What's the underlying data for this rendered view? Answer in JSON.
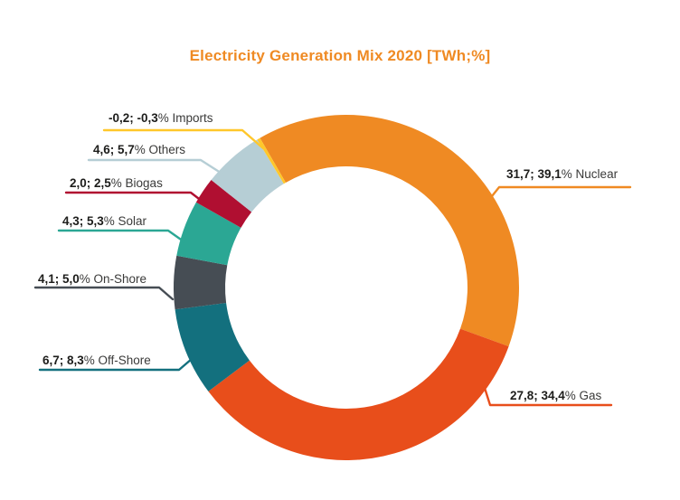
{
  "title": "Electricity Generation Mix 2020 [TWh;%]",
  "colors": {
    "background": "#FFFFFF",
    "title": "#EF8A23",
    "label_text": "#1D1D1B"
  },
  "chart_data": {
    "type": "pie",
    "subtype": "donut",
    "title": "Electricity Generation Mix 2020 [TWh;%]",
    "units": [
      "TWh",
      "%"
    ],
    "start_angle_deg": -30,
    "direction": "clockwise",
    "legend_position": "callout-labels",
    "segments": [
      {
        "name": "Nuclear",
        "twh": 31.7,
        "percent": 39.1,
        "color": "#EF8A23",
        "label_bold": "31,7; 39,1",
        "label_rest": "% Nuclear"
      },
      {
        "name": "Gas",
        "twh": 27.8,
        "percent": 34.4,
        "color": "#E84E1B",
        "label_bold": "27,8; 34,4",
        "label_rest": "% Gas"
      },
      {
        "name": "Off-Shore",
        "twh": 6.7,
        "percent": 8.3,
        "color": "#13707E",
        "label_bold": "6,7; 8,3",
        "label_rest": "% Off-Shore"
      },
      {
        "name": "On-Shore",
        "twh": 4.1,
        "percent": 5.0,
        "color": "#464D54",
        "label_bold": "4,1; 5,0",
        "label_rest": "% On-Shore"
      },
      {
        "name": "Solar",
        "twh": 4.3,
        "percent": 5.3,
        "color": "#2BA794",
        "label_bold": "4,3; 5,3",
        "label_rest": "% Solar"
      },
      {
        "name": "Biogas",
        "twh": 2.0,
        "percent": 2.5,
        "color": "#B00F31",
        "label_bold": "2,0; 2,5",
        "label_rest": "% Biogas"
      },
      {
        "name": "Others",
        "twh": 4.6,
        "percent": 5.7,
        "color": "#B6CED5",
        "label_bold": "4,6; 5,7",
        "label_rest": "% Others"
      },
      {
        "name": "Imports",
        "twh": -0.2,
        "percent": -0.3,
        "color": "#FFC72B",
        "label_bold": "-0,2; -0,3",
        "label_rest": "% Imports"
      }
    ]
  }
}
